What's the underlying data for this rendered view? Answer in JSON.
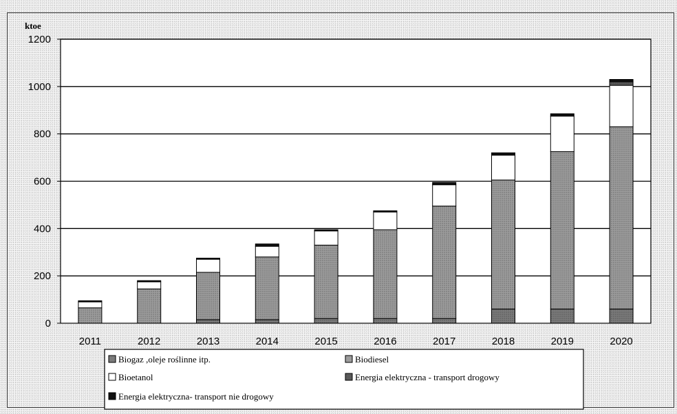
{
  "chart_data": {
    "type": "bar",
    "stacked": true,
    "ylabel": "ktoe",
    "ylim": [
      0,
      1200
    ],
    "yticks": [
      0,
      200,
      400,
      600,
      800,
      1000,
      1200
    ],
    "grid": true,
    "legend_position": "bottom",
    "categories": [
      "2011",
      "2012",
      "2013",
      "2014",
      "2015",
      "2016",
      "2017",
      "2018",
      "2019",
      "2020"
    ],
    "series": [
      {
        "name": "Biogaz ,oleje roślinne itp.",
        "color": "#7a7a7a",
        "values": [
          0,
          0,
          15,
          15,
          20,
          20,
          20,
          60,
          60,
          60
        ]
      },
      {
        "name": "Biodiesel",
        "color": "#9c9c9c",
        "values": [
          65,
          145,
          200,
          265,
          310,
          375,
          475,
          545,
          665,
          770
        ]
      },
      {
        "name": "Bioetanol",
        "color": "#ffffff",
        "values": [
          25,
          30,
          55,
          45,
          60,
          75,
          90,
          105,
          150,
          175
        ]
      },
      {
        "name": "Energia elektryczna - transport drogowy",
        "color": "#5a5a5a",
        "values": [
          0,
          0,
          0,
          0,
          0,
          0,
          0,
          0,
          0,
          15
        ]
      },
      {
        "name": "Energia elektryczna- transport nie drogowy",
        "color": "#111111",
        "values": [
          5,
          5,
          5,
          10,
          5,
          5,
          10,
          10,
          10,
          10
        ]
      }
    ]
  }
}
